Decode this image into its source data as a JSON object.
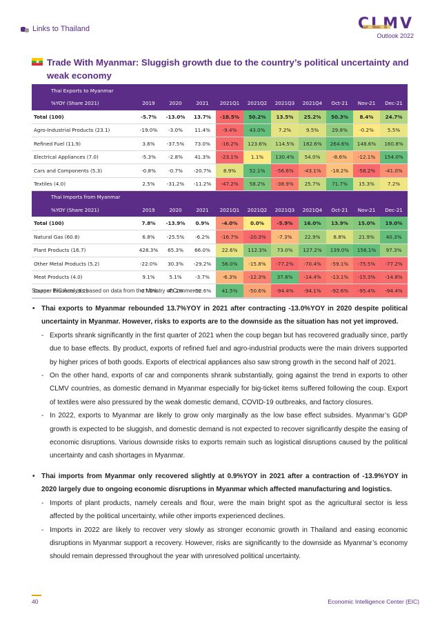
{
  "header": {
    "link_text": "Links to Thailand",
    "logo_text": "CLMV",
    "logo_sub": "Outlook 2022"
  },
  "title": "Trade With Myanmar: Sluggish growth due to the country’s political uncertainty and weak economy",
  "tables": {
    "columns": [
      "2019",
      "2020",
      "2021",
      "2021Q1",
      "2021Q2",
      "2021Q3",
      "2021Q4",
      "Oct-21",
      "Nov-21",
      "Dec-21"
    ],
    "exports": {
      "section_title": "Thai Exports to Myanmar",
      "header_label": "%YOY (Share 2021)",
      "rows": [
        {
          "label": "Total (100)",
          "bold": true,
          "cells": [
            "-5.7%",
            "-13.0%",
            "13.7%",
            "-18.5%",
            "50.2%",
            "13.5%",
            "25.2%",
            "50.3%",
            "8.4%",
            "24.7%"
          ]
        },
        {
          "label": "Agro-Industrial Products (23.1)",
          "cells": [
            "-19.0%",
            "-3.0%",
            "11.4%",
            "-9.4%",
            "43.0%",
            "7.2%",
            "9.5%",
            "29.8%",
            "-0.2%",
            "5.5%"
          ]
        },
        {
          "label": "Refined Fuel (11.9)",
          "cells": [
            "3.6%",
            "-37.5%",
            "73.0%",
            "-16.2%",
            "123.6%",
            "114.5%",
            "182.6%",
            "264.6%",
            "148.6%",
            "160.8%"
          ]
        },
        {
          "label": "Electrical Appliances (7.0)",
          "cells": [
            "-5.3%",
            "-2.8%",
            "41.3%",
            "-23.1%",
            "1.1%",
            "130.4%",
            "54.0%",
            "-8.6%",
            "-12.1%",
            "154.0%"
          ]
        },
        {
          "label": "Cars and Components (5.3)",
          "cells": [
            "-0.8%",
            "-0.7%",
            "-20.7%",
            "8.9%",
            "52.1%",
            "-56.6%",
            "-43.1%",
            "-18.2%",
            "-58.2%",
            "-41.0%"
          ]
        },
        {
          "label": "Textiles (4.0)",
          "cells": [
            "2.5%",
            "-31.2%",
            "-11.2%",
            "-47.2%",
            "58.2%",
            "-38.9%",
            "25.7%",
            "71.7%",
            "15.3%",
            "7.2%"
          ]
        }
      ]
    },
    "imports": {
      "section_title": "Thai Imports from Myanmar",
      "header_label": "%YOY (Share 2021)",
      "rows": [
        {
          "label": "Total (100)",
          "bold": true,
          "cells": [
            "7.8%",
            "-13.9%",
            "0.9%",
            "-4.0%",
            "0.0%",
            "-5.9%",
            "16.0%",
            "13.9%",
            "15.0%",
            "19.0%"
          ]
        },
        {
          "label": "Natural Gas (60.8)",
          "cells": [
            "6.8%",
            "-25.5%",
            "-6.2%",
            "-16.7%",
            "-20.3%",
            "-7.3%",
            "22.9%",
            "8.8%",
            "21.9%",
            "40.3%"
          ]
        },
        {
          "label": "Plant Products (16.7)",
          "cells": [
            "428.3%",
            "65.3%",
            "66.0%",
            "22.6%",
            "112.3%",
            "73.0%",
            "127.2%",
            "139.0%",
            "156.1%",
            "97.3%"
          ]
        },
        {
          "label": "Other Metal Products (5.2)",
          "cells": [
            "-22.0%",
            "30.3%",
            "-29.2%",
            "56.0%",
            "-15.8%",
            "-77.2%",
            "-70.4%",
            "-59.1%",
            "-75.5%",
            "-77.2%"
          ]
        },
        {
          "label": "Meat Products (4.0)",
          "cells": [
            "9.1%",
            "5.1%",
            "-3.7%",
            "-6.3%",
            "-12.3%",
            "37.8%",
            "-14.4%",
            "-13.1%",
            "-15.3%",
            "-14.8%"
          ]
        },
        {
          "label": "Copper Products (3.2)",
          "cells": [
            "-27.0%",
            "45.2%",
            "-52.6%",
            "41.5%",
            "-50.6%",
            "-94.4%",
            "-94.1%",
            "-92.6%",
            "-95.4%",
            "-94.4%"
          ]
        }
      ]
    },
    "heat_colors": {
      "red": "#f8696b",
      "yellow": "#ffeb84",
      "green": "#63be7b"
    }
  },
  "source": "Source: EIC Analysis based on data from the Ministry of Commerce",
  "bullets": [
    {
      "text": "Thai exports to Myanmar rebounded 13.7%YOY in 2021 after contracting -13.0%YOY in 2020 despite political uncertainty in Myanmar. However, risks to exports are to the downside as the situation has not yet improved.",
      "subs": [
        "Exports shrank significantly in the first quarter of 2021 when the coup began but has recovered gradually since, partly due to base effects. By product, exports of refined fuel and agro-industrial products were the main drivers supported by higher prices of both goods. Exports of electrical appliances also saw strong growth in the second half of 2021.",
        "On the other hand, exports of car and components shrank substantially, going against the trend in exports to other CLMV countries, as domestic demand in Myanmar especially for big-ticket items suffered following the coup. Export of textiles were also pressured by the weak domestic demand, COVID-19 outbreaks, and factory closures.",
        "In 2022, exports to Myanmar are likely to grow only marginally as the low base effect subsides. Myanmar’s GDP growth is expected to be sluggish, and domestic demand is not expected to recover significantly despite the easing of economic disruptions. Various downside risks to exports remain such as logistical disruptions caused by the political uncertainty and cash shortages in Myanmar."
      ]
    },
    {
      "text": "Thai imports from Myanmar only recovered slightly at 0.9%YOY in 2021 after a contraction of -13.9%YOY in 2020 largely due to ongoing economic disruptions in Myanmar which affected manufacturing and logistics.",
      "subs": [
        "Imports of plant products, namely cereals and flour, were the main bright spot as the agricultural sector is less affected by the political uncertainty, while other imports experienced declines.",
        "Imports in 2022 are likely to recover very slowly as stronger economic growth in Thailand and easing economic disruptions in Myanmar support a recovery. However, risks are significantly to the downside as Myanmar’s economy should remain depressed throughout the year with unresolved political uncertainty."
      ]
    }
  ],
  "footer": {
    "page_number": "40",
    "org": "Economic Intelligence Center (EIC)"
  }
}
